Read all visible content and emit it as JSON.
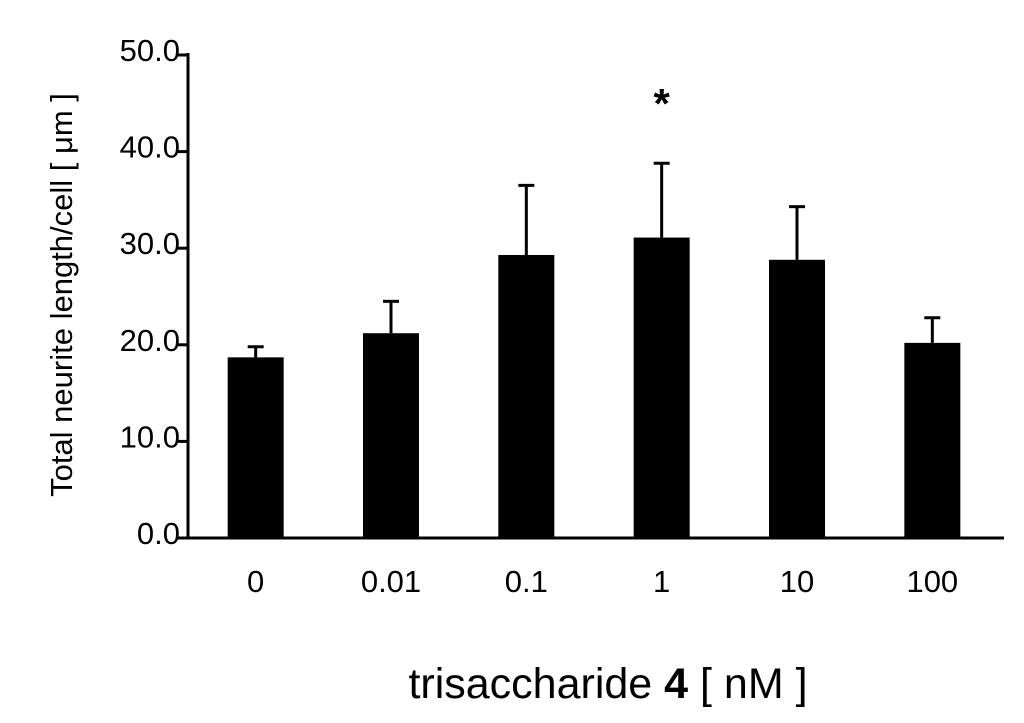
{
  "chart_data": {
    "type": "bar",
    "categories": [
      "0",
      "0.01",
      "0.1",
      "1",
      "10",
      "100"
    ],
    "values": [
      18.7,
      21.2,
      29.3,
      31.1,
      28.8,
      20.2
    ],
    "errors": [
      1.1,
      3.3,
      7.2,
      7.7,
      5.5,
      2.6
    ],
    "yticks": [
      "0.0",
      "10.0",
      "20.0",
      "30.0",
      "40.0",
      "50.0"
    ],
    "ylim": [
      0,
      50
    ],
    "ylabel": "Total neurite length/cell    [ μm ]",
    "xlabel": {
      "prefix": "trisaccharide ",
      "bold": "4",
      "suffix": " [ nM ]"
    },
    "significance": [
      {
        "category": "1",
        "marker": "*"
      }
    ],
    "bar_color": "#000000",
    "grid": false
  }
}
